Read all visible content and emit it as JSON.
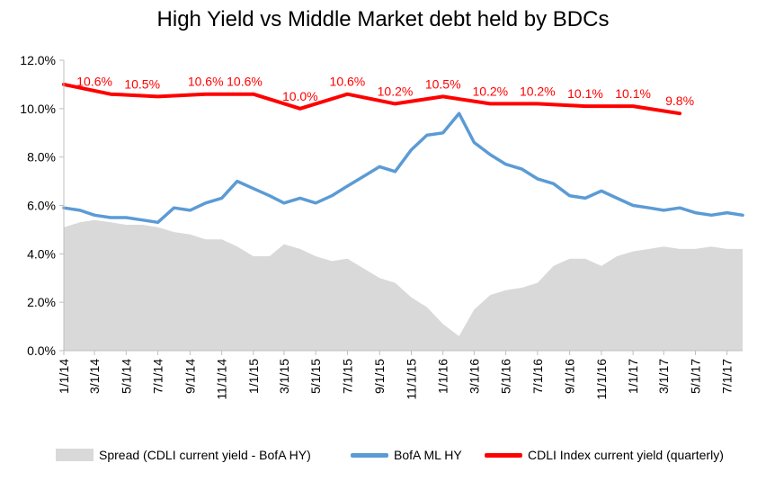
{
  "chart_data": {
    "type": "line",
    "title": "High Yield  vs  Middle Market debt held by BDCs",
    "xlabel": "",
    "ylabel": "",
    "ylim": [
      0,
      12
    ],
    "y_ticks": [
      "0.0%",
      "2.0%",
      "4.0%",
      "6.0%",
      "8.0%",
      "10.0%",
      "12.0%"
    ],
    "x_tick_labels": [
      "1/1/14",
      "3/1/14",
      "5/1/14",
      "7/1/14",
      "9/1/14",
      "11/1/14",
      "1/1/15",
      "3/1/15",
      "5/1/15",
      "7/1/15",
      "9/1/15",
      "11/1/15",
      "1/1/16",
      "3/1/16",
      "5/1/16",
      "7/1/16",
      "9/1/16",
      "11/1/16",
      "1/1/17",
      "3/1/17",
      "5/1/17",
      "7/1/17"
    ],
    "x_range": [
      "1/1/14",
      "7/31/17"
    ],
    "grid": false,
    "legend_position": "bottom",
    "series": [
      {
        "name": "Spread (CDLI current yield - BofA HY)",
        "kind": "area",
        "color": "#d9d9d9",
        "points": [
          [
            "1/1/14",
            5.1
          ],
          [
            "2/1/14",
            5.3
          ],
          [
            "3/1/14",
            5.4
          ],
          [
            "4/1/14",
            5.3
          ],
          [
            "5/1/14",
            5.2
          ],
          [
            "6/1/14",
            5.2
          ],
          [
            "7/1/14",
            5.1
          ],
          [
            "8/1/14",
            4.9
          ],
          [
            "9/1/14",
            4.8
          ],
          [
            "10/1/14",
            4.6
          ],
          [
            "11/1/14",
            4.6
          ],
          [
            "12/1/14",
            4.3
          ],
          [
            "1/1/15",
            3.9
          ],
          [
            "2/1/15",
            3.9
          ],
          [
            "3/1/15",
            4.4
          ],
          [
            "4/1/15",
            4.2
          ],
          [
            "5/1/15",
            3.9
          ],
          [
            "6/1/15",
            3.7
          ],
          [
            "7/1/15",
            3.8
          ],
          [
            "8/1/15",
            3.4
          ],
          [
            "9/1/15",
            3.0
          ],
          [
            "10/1/15",
            2.8
          ],
          [
            "11/1/15",
            2.2
          ],
          [
            "12/1/15",
            1.8
          ],
          [
            "1/1/16",
            1.1
          ],
          [
            "2/1/16",
            0.6
          ],
          [
            "3/1/16",
            1.7
          ],
          [
            "4/1/16",
            2.3
          ],
          [
            "5/1/16",
            2.5
          ],
          [
            "6/1/16",
            2.6
          ],
          [
            "7/1/16",
            2.8
          ],
          [
            "8/1/16",
            3.5
          ],
          [
            "9/1/16",
            3.8
          ],
          [
            "10/1/16",
            3.8
          ],
          [
            "11/1/16",
            3.5
          ],
          [
            "12/1/16",
            3.9
          ],
          [
            "1/1/17",
            4.1
          ],
          [
            "2/1/17",
            4.2
          ],
          [
            "3/1/17",
            4.3
          ],
          [
            "4/1/17",
            4.2
          ],
          [
            "5/1/17",
            4.2
          ],
          [
            "6/1/17",
            4.3
          ],
          [
            "7/1/17",
            4.2
          ],
          [
            "7/31/17",
            4.2
          ]
        ]
      },
      {
        "name": "BofA ML HY",
        "kind": "line",
        "color": "#5b9bd5",
        "points": [
          [
            "1/1/14",
            5.9
          ],
          [
            "2/1/14",
            5.8
          ],
          [
            "3/1/14",
            5.6
          ],
          [
            "4/1/14",
            5.5
          ],
          [
            "5/1/14",
            5.5
          ],
          [
            "6/1/14",
            5.4
          ],
          [
            "7/1/14",
            5.3
          ],
          [
            "8/1/14",
            5.9
          ],
          [
            "9/1/14",
            5.8
          ],
          [
            "10/1/14",
            6.1
          ],
          [
            "11/1/14",
            6.3
          ],
          [
            "12/1/14",
            7.0
          ],
          [
            "1/1/15",
            6.7
          ],
          [
            "2/1/15",
            6.4
          ],
          [
            "3/1/15",
            6.1
          ],
          [
            "4/1/15",
            6.3
          ],
          [
            "5/1/15",
            6.1
          ],
          [
            "6/1/15",
            6.4
          ],
          [
            "7/1/15",
            6.8
          ],
          [
            "8/1/15",
            7.2
          ],
          [
            "9/1/15",
            7.6
          ],
          [
            "10/1/15",
            7.4
          ],
          [
            "11/1/15",
            8.3
          ],
          [
            "12/1/15",
            8.9
          ],
          [
            "1/1/16",
            9.0
          ],
          [
            "2/1/16",
            9.8
          ],
          [
            "3/1/16",
            8.6
          ],
          [
            "4/1/16",
            8.1
          ],
          [
            "5/1/16",
            7.7
          ],
          [
            "6/1/16",
            7.5
          ],
          [
            "7/1/16",
            7.1
          ],
          [
            "8/1/16",
            6.9
          ],
          [
            "9/1/16",
            6.4
          ],
          [
            "10/1/16",
            6.3
          ],
          [
            "11/1/16",
            6.6
          ],
          [
            "12/1/16",
            6.3
          ],
          [
            "1/1/17",
            6.0
          ],
          [
            "2/1/17",
            5.9
          ],
          [
            "3/1/17",
            5.8
          ],
          [
            "4/1/17",
            5.9
          ],
          [
            "5/1/17",
            5.7
          ],
          [
            "6/1/17",
            5.6
          ],
          [
            "7/1/17",
            5.7
          ],
          [
            "7/31/17",
            5.6
          ]
        ]
      },
      {
        "name": "CDLI Index current yield (quarterly)",
        "kind": "line",
        "color": "#ff0000",
        "points": [
          [
            "1/1/14",
            11.0
          ],
          [
            "4/1/14",
            10.6
          ],
          [
            "7/1/14",
            10.5
          ],
          [
            "10/1/14",
            10.6
          ],
          [
            "1/1/15",
            10.6
          ],
          [
            "4/1/15",
            10.0
          ],
          [
            "7/1/15",
            10.6
          ],
          [
            "10/1/15",
            10.2
          ],
          [
            "1/1/16",
            10.5
          ],
          [
            "4/1/16",
            10.2
          ],
          [
            "7/1/16",
            10.2
          ],
          [
            "10/1/16",
            10.1
          ],
          [
            "1/1/17",
            10.1
          ],
          [
            "4/1/17",
            9.8
          ]
        ],
        "data_labels": [
          {
            "x": "3/1/14",
            "y": 10.6,
            "text": "10.6%"
          },
          {
            "x": "6/1/14",
            "y": 10.5,
            "text": "10.5%"
          },
          {
            "x": "10/1/14",
            "y": 10.6,
            "text": "10.6%"
          },
          {
            "x": "12/15/14",
            "y": 10.6,
            "text": "10.6%"
          },
          {
            "x": "4/1/15",
            "y": 10.0,
            "text": "10.0%"
          },
          {
            "x": "7/1/15",
            "y": 10.6,
            "text": "10.6%"
          },
          {
            "x": "10/1/15",
            "y": 10.2,
            "text": "10.2%"
          },
          {
            "x": "1/1/16",
            "y": 10.5,
            "text": "10.5%"
          },
          {
            "x": "4/1/16",
            "y": 10.2,
            "text": "10.2%"
          },
          {
            "x": "7/1/16",
            "y": 10.2,
            "text": "10.2%"
          },
          {
            "x": "10/1/16",
            "y": 10.1,
            "text": "10.1%"
          },
          {
            "x": "1/1/17",
            "y": 10.1,
            "text": "10.1%"
          },
          {
            "x": "4/1/17",
            "y": 9.8,
            "text": "9.8%"
          }
        ]
      }
    ]
  },
  "legend": {
    "items": [
      {
        "label": "Spread (CDLI current yield - BofA HY)",
        "color": "#d9d9d9"
      },
      {
        "label": "BofA ML HY",
        "color": "#5b9bd5"
      },
      {
        "label": "CDLI Index current yield (quarterly)",
        "color": "#ff0000"
      }
    ]
  }
}
